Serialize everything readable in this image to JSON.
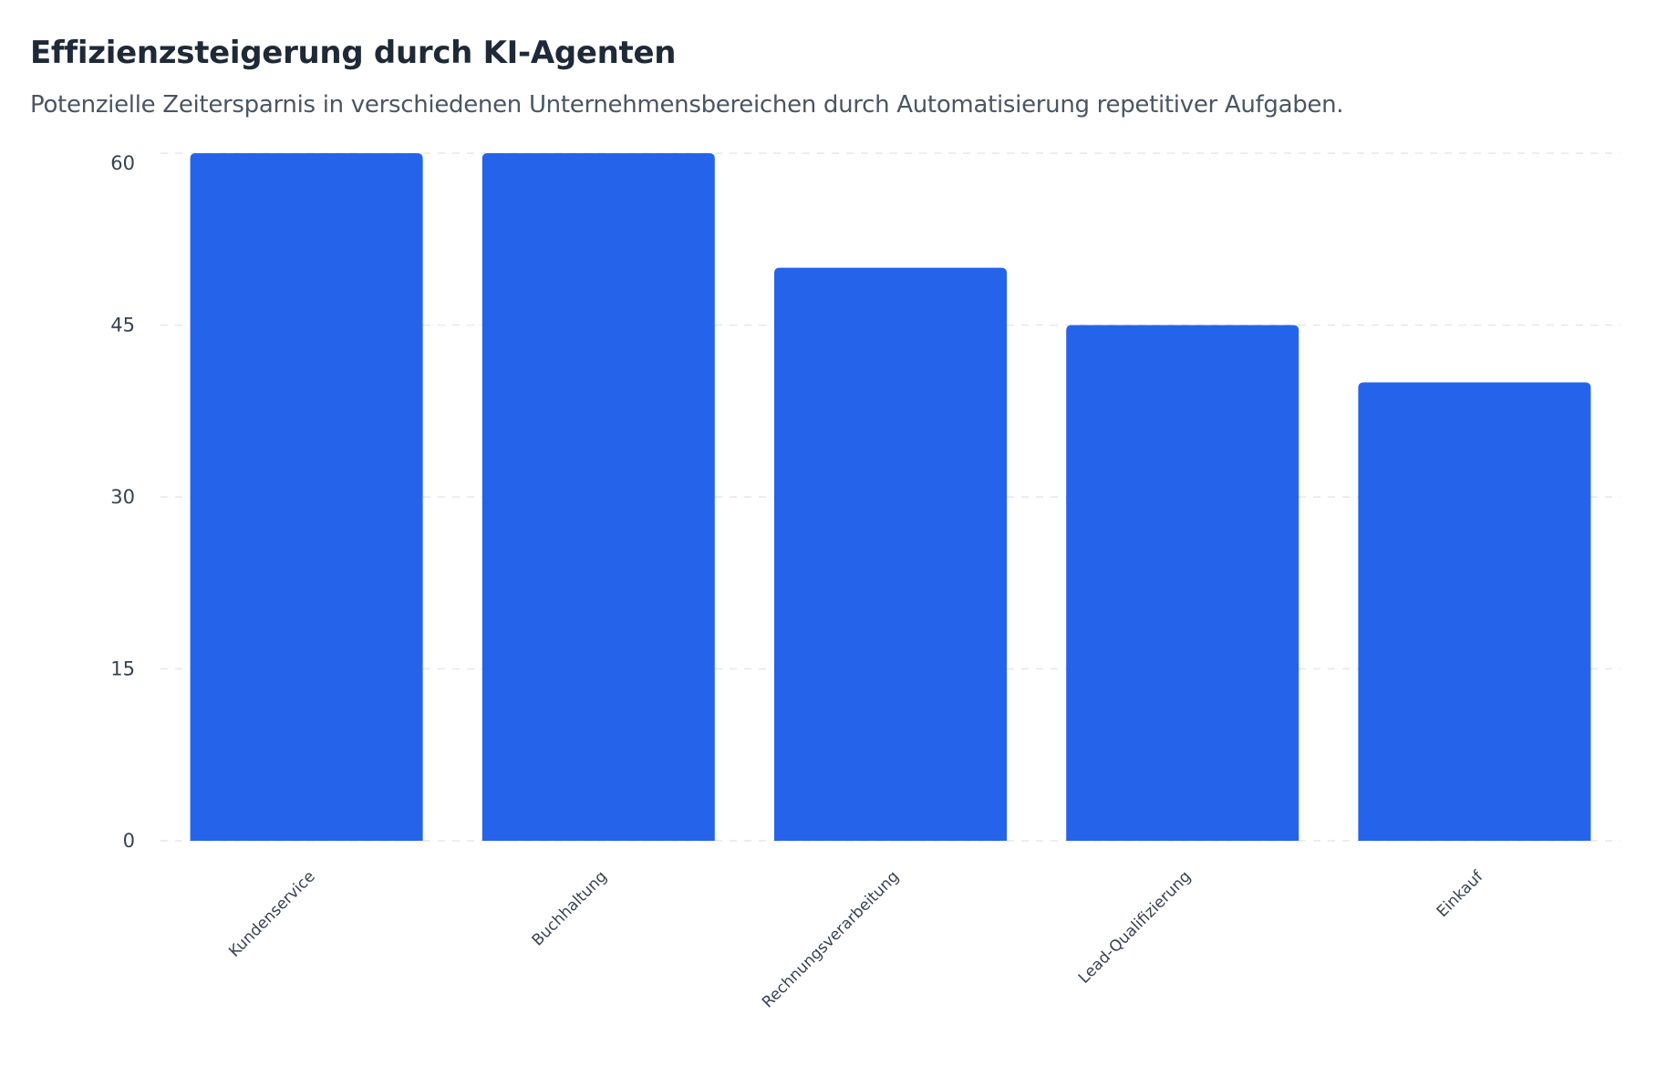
{
  "chart_data": {
    "type": "bar",
    "title": "Effizienzsteigerung durch KI-Agenten",
    "subtitle": "Potenzielle Zeitersparnis in verschiedenen Unternehmensbereichen durch Automatisierung repetitiver Aufgaben.",
    "categories": [
      "Kundenservice",
      "Buchhaltung",
      "Rechnungsverarbeitung",
      "Lead-Qualifizierung",
      "Einkauf"
    ],
    "values": [
      60,
      60,
      50,
      45,
      40
    ],
    "xlabel": "",
    "ylabel": "",
    "ylim": [
      0,
      60
    ],
    "yticks": [
      0,
      15,
      30,
      45,
      60
    ],
    "grid": true,
    "legend": "none",
    "bar_color": "#2563eb",
    "grid_color": "#e5e7eb"
  }
}
